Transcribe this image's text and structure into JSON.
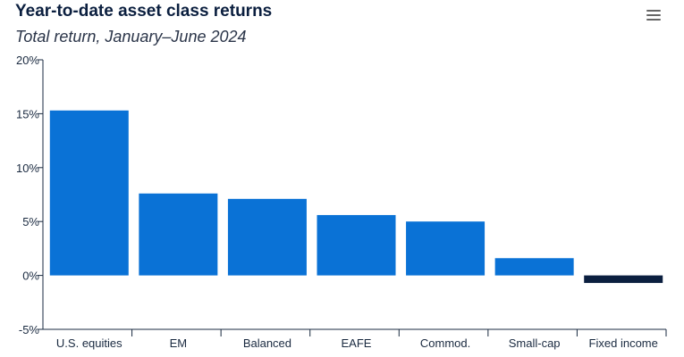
{
  "chart_data": {
    "type": "bar",
    "title": "Year-to-date asset class returns",
    "subtitle": "Total return, January–June 2024",
    "categories": [
      "U.S. equities",
      "EM",
      "Balanced",
      "EAFE",
      "Commod.",
      "Small-cap",
      "Fixed income"
    ],
    "values": [
      15.3,
      7.6,
      7.1,
      5.6,
      5.0,
      1.6,
      -0.7
    ],
    "ylim": [
      -5,
      20
    ],
    "yticks": [
      20,
      15,
      10,
      5,
      0,
      -5
    ],
    "ytick_labels": [
      "20%",
      "15%",
      "10%",
      "5%",
      "0%",
      "-5%"
    ],
    "xlabel": "",
    "ylabel": "",
    "grid": false,
    "colors": {
      "positive": "#0a72d6",
      "negative": "#0b1f3f",
      "axis": "#1a2a40"
    }
  },
  "menu": {
    "icon": "hamburger-menu-icon"
  }
}
